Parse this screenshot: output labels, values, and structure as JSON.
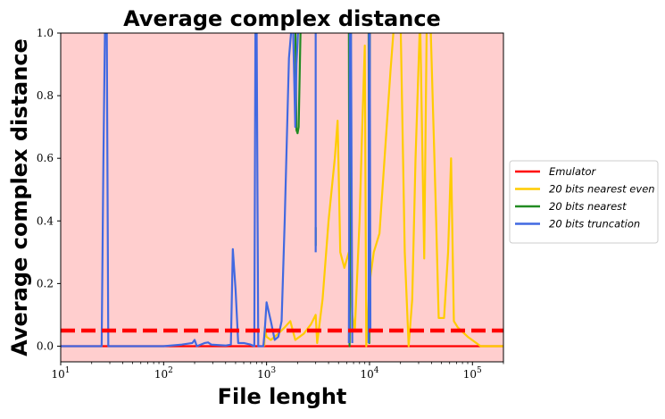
{
  "chart_data": {
    "type": "line",
    "title": "Average complex distance",
    "xlabel": "File lenght",
    "ylabel": "Average complex distance",
    "xscale": "log",
    "xlim": [
      10,
      200000
    ],
    "ylim": [
      -0.05,
      1.0
    ],
    "x_ticks": [
      {
        "value": 10,
        "base": "10",
        "exp": "1"
      },
      {
        "value": 100,
        "base": "10",
        "exp": "2"
      },
      {
        "value": 1000,
        "base": "10",
        "exp": "3"
      },
      {
        "value": 10000,
        "base": "10",
        "exp": "4"
      },
      {
        "value": 100000,
        "base": "10",
        "exp": "5"
      }
    ],
    "y_ticks": [
      {
        "value": 0.0,
        "label": "0.0"
      },
      {
        "value": 0.2,
        "label": "0.2"
      },
      {
        "value": 0.4,
        "label": "0.4"
      },
      {
        "value": 0.6,
        "label": "0.6"
      },
      {
        "value": 0.8,
        "label": "0.8"
      },
      {
        "value": 1.0,
        "label": "1.0"
      }
    ],
    "background_region": {
      "color": "#ffcece"
    },
    "threshold": {
      "y": 0.05,
      "color": "#ff0000",
      "style": "dashed"
    },
    "legend_position": "center-right outside",
    "grid": false,
    "series": [
      {
        "name": "Emulator",
        "color": "#ff0000",
        "points": [
          [
            10,
            0
          ],
          [
            200000,
            0
          ]
        ]
      },
      {
        "name": "20 bits nearest even",
        "color": "#ffcc00",
        "points": [
          [
            950,
            0
          ],
          [
            960,
            0.06
          ],
          [
            1000,
            0.03
          ],
          [
            1100,
            0.02
          ],
          [
            1300,
            0.04
          ],
          [
            1500,
            0.06
          ],
          [
            1700,
            0.08
          ],
          [
            1900,
            0.02
          ],
          [
            2300,
            0.04
          ],
          [
            2700,
            0.07
          ],
          [
            3000,
            0.1
          ],
          [
            3100,
            0.01
          ],
          [
            3500,
            0.15
          ],
          [
            4000,
            0.4
          ],
          [
            4600,
            0.6
          ],
          [
            4900,
            0.72
          ],
          [
            5200,
            0.3
          ],
          [
            5700,
            0.25
          ],
          [
            6300,
            0.3
          ],
          [
            6800,
            0.1
          ],
          [
            7200,
            0.05
          ],
          [
            8000,
            0.4
          ],
          [
            8500,
            0.7
          ],
          [
            9000,
            0.96
          ],
          [
            9300,
            0.0
          ],
          [
            10000,
            0.2
          ],
          [
            11000,
            0.3
          ],
          [
            12500,
            0.36
          ],
          [
            14000,
            0.6
          ],
          [
            16000,
            0.88
          ],
          [
            17500,
            1.05
          ],
          [
            20000,
            1.05
          ],
          [
            22000,
            0.3
          ],
          [
            24000,
            0.0
          ],
          [
            26000,
            0.15
          ],
          [
            28000,
            0.6
          ],
          [
            31000,
            1.05
          ],
          [
            34000,
            0.28
          ],
          [
            36000,
            1.05
          ],
          [
            39000,
            1.05
          ],
          [
            44000,
            0.45
          ],
          [
            47000,
            0.09
          ],
          [
            53000,
            0.09
          ],
          [
            58000,
            0.3
          ],
          [
            62000,
            0.6
          ],
          [
            66000,
            0.08
          ],
          [
            72000,
            0.06
          ],
          [
            90000,
            0.03
          ],
          [
            120000,
            0.0
          ],
          [
            200000,
            0.0
          ]
        ]
      },
      {
        "name": "20 bits nearest",
        "color": "#228b22",
        "segments": [
          [
            [
              1900,
              1.05
            ],
            [
              1950,
              0.69
            ],
            [
              2000,
              0.68
            ],
            [
              2050,
              0.7
            ],
            [
              2150,
              1.05
            ]
          ],
          [
            [
              3000,
              0.32
            ],
            [
              3000,
              0.38
            ]
          ],
          [
            [
              6300,
              1.05
            ],
            [
              6400,
              0.0
            ],
            [
              6600,
              1.05
            ]
          ],
          [
            [
              9800,
              1.05
            ],
            [
              9950,
              0.01
            ],
            [
              10100,
              1.05
            ]
          ]
        ]
      },
      {
        "name": "20 bits truncation",
        "color": "#4169e1",
        "points": [
          [
            10,
            0
          ],
          [
            25,
            0
          ],
          [
            26,
            0.6
          ],
          [
            27,
            1.05
          ],
          [
            28,
            1.05
          ],
          [
            29,
            0
          ],
          [
            80,
            0
          ],
          [
            100,
            0
          ],
          [
            150,
            0.005
          ],
          [
            190,
            0.01
          ],
          [
            200,
            0.02
          ],
          [
            210,
            0
          ],
          [
            250,
            0.01
          ],
          [
            270,
            0.012
          ],
          [
            290,
            0.005
          ],
          [
            400,
            0.002
          ],
          [
            450,
            0.005
          ],
          [
            470,
            0.31
          ],
          [
            500,
            0.18
          ],
          [
            530,
            0.01
          ],
          [
            600,
            0.01
          ],
          [
            700,
            0.005
          ],
          [
            760,
            0
          ],
          [
            780,
            1.05
          ],
          [
            800,
            1.05
          ],
          [
            830,
            0
          ],
          [
            930,
            0
          ],
          [
            960,
            0.05
          ],
          [
            1000,
            0.14
          ],
          [
            1100,
            0.08
          ],
          [
            1200,
            0.02
          ],
          [
            1300,
            0.03
          ],
          [
            1400,
            0.08
          ],
          [
            1500,
            0.4
          ],
          [
            1650,
            0.92
          ],
          [
            1780,
            1.05
          ],
          [
            1800,
            1.05
          ],
          [
            1900,
            0.7
          ],
          [
            1950,
            0.9
          ],
          [
            2000,
            0.97
          ],
          [
            2050,
            1.05
          ]
        ]
      },
      {
        "name": "",
        "color": "#4169e1",
        "legend": false,
        "segments": [
          [
            [
              3000,
              0.3
            ],
            [
              3000,
              1.05
            ]
          ],
          [
            [
              6300,
              0.01
            ],
            [
              6450,
              1.05
            ],
            [
              6600,
              1.05
            ],
            [
              6800,
              0.01
            ]
          ],
          [
            [
              9800,
              0.01
            ],
            [
              9900,
              1.05
            ],
            [
              10050,
              1.05
            ],
            [
              10200,
              0.05
            ]
          ]
        ]
      }
    ]
  }
}
